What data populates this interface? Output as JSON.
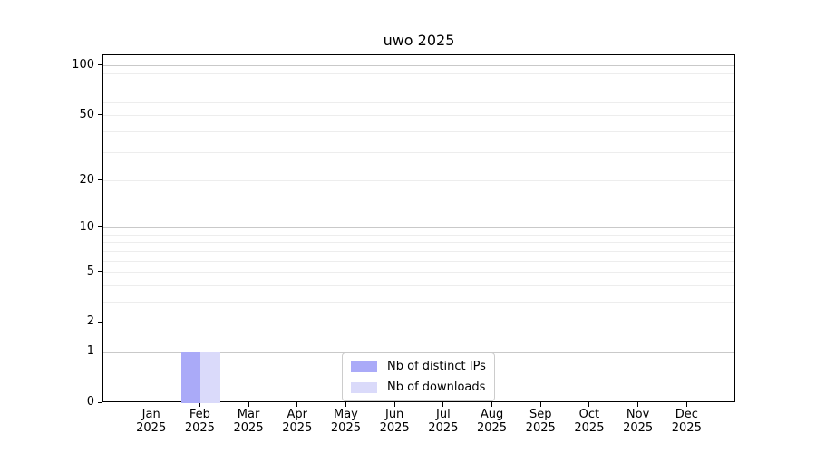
{
  "figure": {
    "title": "uwo 2025"
  },
  "chart_data": {
    "type": "bar",
    "title": "uwo 2025",
    "categories": [
      "Jan\n2025",
      "Feb\n2025",
      "Mar\n2025",
      "Apr\n2025",
      "May\n2025",
      "Jun\n2025",
      "Jul\n2025",
      "Aug\n2025",
      "Sep\n2025",
      "Oct\n2025",
      "Nov\n2025",
      "Dec\n2025"
    ],
    "series": [
      {
        "name": "Nb of distinct IPs",
        "color": "#aaaaf8",
        "values": [
          0,
          1,
          0,
          0,
          0,
          0,
          0,
          0,
          0,
          0,
          0,
          0
        ]
      },
      {
        "name": "Nb of downloads",
        "color": "#dadafa",
        "values": [
          0,
          1,
          0,
          0,
          0,
          0,
          0,
          0,
          0,
          0,
          0,
          0
        ]
      }
    ],
    "xlabel": "",
    "ylabel": "",
    "y_axis": {
      "scale": "log1p",
      "tick_values": [
        0,
        1,
        2,
        5,
        10,
        20,
        50,
        100
      ],
      "major_gridlines": [
        1,
        10,
        100
      ],
      "minor_gridlines": [
        2,
        3,
        4,
        5,
        6,
        7,
        8,
        9,
        20,
        30,
        40,
        50,
        60,
        70,
        80,
        90
      ],
      "ylim": [
        0,
        116
      ]
    },
    "legend": {
      "position": "lower center",
      "border_color": "#cccccc"
    },
    "colors": {
      "major_grid": "#c9c9c9",
      "minor_grid": "#ededed",
      "axis": "#000000",
      "background": "#ffffff"
    }
  }
}
